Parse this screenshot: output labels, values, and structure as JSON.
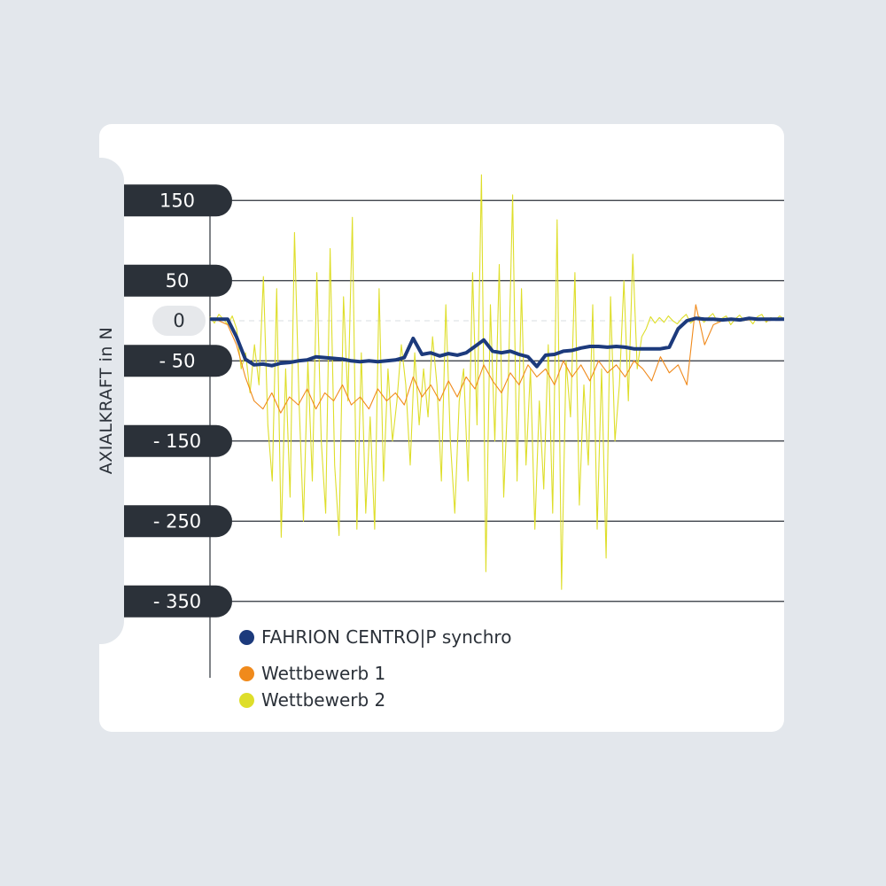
{
  "chart_data": {
    "type": "line",
    "ylabel": "AXIALKRAFT in N",
    "xlabel": "",
    "ylim": [
      -360,
      165
    ],
    "grid": true,
    "legend_position": "bottom-left",
    "y_ticks": [
      {
        "value": 150,
        "label": "150"
      },
      {
        "value": 50,
        "label": "50"
      },
      {
        "value": 0,
        "label": "0"
      },
      {
        "value": -50,
        "label": "- 50"
      },
      {
        "value": -150,
        "label": "- 150"
      },
      {
        "value": -250,
        "label": "- 250"
      },
      {
        "value": -350,
        "label": "- 350"
      }
    ],
    "series": [
      {
        "name": "Wettbewerb 2",
        "color": "#dede2a",
        "values": [
          5,
          -3,
          8,
          2,
          -5,
          6,
          -10,
          -60,
          -40,
          -90,
          -30,
          -80,
          55,
          -130,
          -200,
          40,
          -270,
          -60,
          -220,
          110,
          -100,
          -250,
          -50,
          -200,
          60,
          -150,
          -240,
          90,
          -180,
          -268,
          30,
          -100,
          129,
          -260,
          -40,
          -240,
          -120,
          -260,
          40,
          -200,
          -60,
          -150,
          -100,
          -30,
          -80,
          -180,
          -40,
          -130,
          -60,
          -120,
          -20,
          -80,
          -200,
          20,
          -150,
          -240,
          -100,
          -60,
          -200,
          60,
          -130,
          182,
          -313,
          20,
          -150,
          70,
          -220,
          -80,
          157,
          -200,
          40,
          -180,
          -60,
          -260,
          -100,
          -210,
          -30,
          -240,
          126,
          -335,
          -50,
          -120,
          60,
          -230,
          -80,
          -180,
          20,
          -260,
          -60,
          -296,
          30,
          -150,
          -80,
          50,
          -100,
          83,
          -60,
          -20,
          -10,
          5,
          -3,
          4,
          -2,
          6,
          0,
          -4,
          3,
          8,
          -3,
          2,
          5,
          -2,
          4,
          9,
          -1,
          3,
          6,
          -5,
          2,
          7,
          0,
          3,
          -4,
          5,
          8,
          -2,
          4,
          1,
          6,
          2
        ]
      },
      {
        "name": "Wettbewerb 1",
        "color": "#f08a1c",
        "values": [
          2,
          0,
          -5,
          -30,
          -70,
          -100,
          -110,
          -90,
          -115,
          -95,
          -105,
          -85,
          -110,
          -90,
          -100,
          -80,
          -105,
          -95,
          -110,
          -85,
          -100,
          -90,
          -105,
          -70,
          -95,
          -80,
          -100,
          -75,
          -95,
          -70,
          -85,
          -55,
          -75,
          -90,
          -65,
          -80,
          -55,
          -70,
          -60,
          -80,
          -50,
          -70,
          -55,
          -75,
          -50,
          -65,
          -55,
          -70,
          -50,
          -60,
          -75,
          -45,
          -65,
          -55,
          -80,
          20,
          -30,
          -5,
          0,
          2,
          0,
          1,
          2,
          0,
          1,
          2
        ]
      },
      {
        "name": "FAHRION CENTRO|P synchro",
        "color": "#1c3a7c",
        "values": [
          2,
          2,
          2,
          -20,
          -48,
          -55,
          -54,
          -56,
          -53,
          -52,
          -50,
          -49,
          -45,
          -46,
          -47,
          -48,
          -50,
          -51,
          -50,
          -51,
          -50,
          -49,
          -46,
          -22,
          -42,
          -40,
          -44,
          -41,
          -43,
          -40,
          -32,
          -24,
          -38,
          -40,
          -38,
          -42,
          -45,
          -57,
          -43,
          -42,
          -38,
          -37,
          -34,
          -32,
          -32,
          -33,
          -32,
          -33,
          -35,
          -35,
          -35,
          -35,
          -33,
          -10,
          0,
          3,
          2,
          2,
          1,
          2,
          1,
          3,
          2,
          2,
          2,
          2
        ]
      }
    ]
  }
}
